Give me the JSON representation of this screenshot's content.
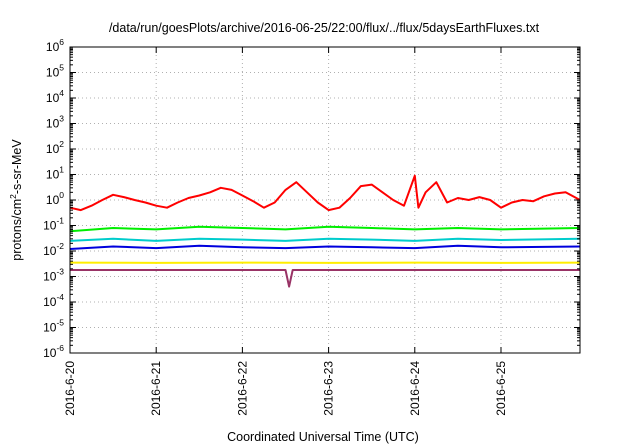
{
  "chart_data": {
    "type": "line",
    "title": "/data/run/goesPlots/archive/2016-06-25/22:00/flux/../flux/5daysEarthFluxes.txt",
    "xlabel": "Coordinated Universal Time (UTC)",
    "ylabel": {
      "prefix": "protons/cm",
      "sup": "2",
      "suffix": "-s-sr-MeV"
    },
    "y_scale": "log",
    "ylim": [
      1e-06,
      1000000.0
    ],
    "y_ticks": [
      {
        "base": "10",
        "exp": "6",
        "value": 1000000.0
      },
      {
        "base": "10",
        "exp": "5",
        "value": 100000.0
      },
      {
        "base": "10",
        "exp": "4",
        "value": 10000.0
      },
      {
        "base": "10",
        "exp": "3",
        "value": 1000.0
      },
      {
        "base": "10",
        "exp": "2",
        "value": 100.0
      },
      {
        "base": "10",
        "exp": "1",
        "value": 10.0
      },
      {
        "base": "10",
        "exp": "0",
        "value": 1
      },
      {
        "base": "10",
        "exp": "-1",
        "value": 0.1
      },
      {
        "base": "10",
        "exp": "-2",
        "value": 0.01
      },
      {
        "base": "10",
        "exp": "-3",
        "value": 0.001
      },
      {
        "base": "10",
        "exp": "-4",
        "value": 0.0001
      },
      {
        "base": "10",
        "exp": "-5",
        "value": 1e-05
      },
      {
        "base": "10",
        "exp": "-6",
        "value": 1e-06
      }
    ],
    "x_range_days": [
      "2016-06-20",
      "2016-06-25T22:00"
    ],
    "x_ticks": [
      "2016-6-20",
      "2016-6-21",
      "2016-6-22",
      "2016-6-23",
      "2016-6-24",
      "2016-6-25"
    ],
    "grid": true,
    "series": [
      {
        "color": "#ff0000",
        "points": [
          [
            "2016-06-20T00:00",
            0.5
          ],
          [
            "2016-06-20T03:00",
            0.4
          ],
          [
            "2016-06-20T06:00",
            0.6
          ],
          [
            "2016-06-20T09:00",
            1.0
          ],
          [
            "2016-06-20T12:00",
            1.6
          ],
          [
            "2016-06-20T15:00",
            1.3
          ],
          [
            "2016-06-20T18:00",
            1.0
          ],
          [
            "2016-06-20T21:00",
            0.8
          ],
          [
            "2016-06-21T00:00",
            0.6
          ],
          [
            "2016-06-21T03:00",
            0.5
          ],
          [
            "2016-06-21T06:00",
            0.8
          ],
          [
            "2016-06-21T09:00",
            1.2
          ],
          [
            "2016-06-21T12:00",
            1.5
          ],
          [
            "2016-06-21T15:00",
            2.0
          ],
          [
            "2016-06-21T18:00",
            3.0
          ],
          [
            "2016-06-21T21:00",
            2.5
          ],
          [
            "2016-06-22T00:00",
            1.5
          ],
          [
            "2016-06-22T03:00",
            0.9
          ],
          [
            "2016-06-22T06:00",
            0.5
          ],
          [
            "2016-06-22T09:00",
            0.8
          ],
          [
            "2016-06-22T12:00",
            2.5
          ],
          [
            "2016-06-22T15:00",
            5.0
          ],
          [
            "2016-06-22T18:00",
            2.0
          ],
          [
            "2016-06-22T21:00",
            0.8
          ],
          [
            "2016-06-23T00:00",
            0.4
          ],
          [
            "2016-06-23T03:00",
            0.5
          ],
          [
            "2016-06-23T06:00",
            1.2
          ],
          [
            "2016-06-23T09:00",
            3.5
          ],
          [
            "2016-06-23T12:00",
            4.0
          ],
          [
            "2016-06-23T15:00",
            2.0
          ],
          [
            "2016-06-23T18:00",
            1.0
          ],
          [
            "2016-06-23T21:00",
            0.6
          ],
          [
            "2016-06-24T00:00",
            9.0
          ],
          [
            "2016-06-24T01:00",
            0.5
          ],
          [
            "2016-06-24T03:00",
            2.0
          ],
          [
            "2016-06-24T06:00",
            5.0
          ],
          [
            "2016-06-24T09:00",
            0.8
          ],
          [
            "2016-06-24T12:00",
            1.2
          ],
          [
            "2016-06-24T15:00",
            1.0
          ],
          [
            "2016-06-24T18:00",
            1.3
          ],
          [
            "2016-06-24T21:00",
            1.0
          ],
          [
            "2016-06-25T00:00",
            0.5
          ],
          [
            "2016-06-25T03:00",
            0.8
          ],
          [
            "2016-06-25T06:00",
            1.0
          ],
          [
            "2016-06-25T09:00",
            0.9
          ],
          [
            "2016-06-25T12:00",
            1.4
          ],
          [
            "2016-06-25T15:00",
            1.8
          ],
          [
            "2016-06-25T18:00",
            2.0
          ],
          [
            "2016-06-25T22:00",
            1.0
          ]
        ]
      },
      {
        "color": "#00ee00",
        "points": [
          [
            "2016-06-20T00:00",
            0.06
          ],
          [
            "2016-06-20T12:00",
            0.08
          ],
          [
            "2016-06-21T00:00",
            0.07
          ],
          [
            "2016-06-21T12:00",
            0.09
          ],
          [
            "2016-06-22T00:00",
            0.08
          ],
          [
            "2016-06-22T12:00",
            0.07
          ],
          [
            "2016-06-23T00:00",
            0.09
          ],
          [
            "2016-06-23T12:00",
            0.08
          ],
          [
            "2016-06-24T00:00",
            0.07
          ],
          [
            "2016-06-24T12:00",
            0.08
          ],
          [
            "2016-06-25T00:00",
            0.07
          ],
          [
            "2016-06-25T22:00",
            0.08
          ]
        ]
      },
      {
        "color": "#00cccc",
        "points": [
          [
            "2016-06-20T00:00",
            0.025
          ],
          [
            "2016-06-20T12:00",
            0.03
          ],
          [
            "2016-06-21T00:00",
            0.025
          ],
          [
            "2016-06-21T12:00",
            0.03
          ],
          [
            "2016-06-22T00:00",
            0.028
          ],
          [
            "2016-06-22T12:00",
            0.025
          ],
          [
            "2016-06-23T00:00",
            0.03
          ],
          [
            "2016-06-23T12:00",
            0.028
          ],
          [
            "2016-06-24T00:00",
            0.025
          ],
          [
            "2016-06-24T12:00",
            0.03
          ],
          [
            "2016-06-25T00:00",
            0.027
          ],
          [
            "2016-06-25T22:00",
            0.03
          ]
        ]
      },
      {
        "color": "#0000dd",
        "points": [
          [
            "2016-06-20T00:00",
            0.012
          ],
          [
            "2016-06-20T12:00",
            0.015
          ],
          [
            "2016-06-21T00:00",
            0.013
          ],
          [
            "2016-06-21T12:00",
            0.016
          ],
          [
            "2016-06-22T00:00",
            0.014
          ],
          [
            "2016-06-22T12:00",
            0.013
          ],
          [
            "2016-06-23T00:00",
            0.015
          ],
          [
            "2016-06-23T12:00",
            0.014
          ],
          [
            "2016-06-24T00:00",
            0.013
          ],
          [
            "2016-06-24T12:00",
            0.016
          ],
          [
            "2016-06-25T00:00",
            0.014
          ],
          [
            "2016-06-25T22:00",
            0.015
          ]
        ]
      },
      {
        "color": "#ffee00",
        "points": [
          [
            "2016-06-20T00:00",
            0.0035
          ],
          [
            "2016-06-21T00:00",
            0.0034
          ],
          [
            "2016-06-22T00:00",
            0.0035
          ],
          [
            "2016-06-23T00:00",
            0.0034
          ],
          [
            "2016-06-24T00:00",
            0.0035
          ],
          [
            "2016-06-25T00:00",
            0.0034
          ],
          [
            "2016-06-25T22:00",
            0.0035
          ]
        ]
      },
      {
        "color": "#993366",
        "points": [
          [
            "2016-06-20T00:00",
            0.0018
          ],
          [
            "2016-06-21T00:00",
            0.0018
          ],
          [
            "2016-06-22T00:00",
            0.0018
          ],
          [
            "2016-06-22T12:00",
            0.0018
          ],
          [
            "2016-06-22T13:00",
            0.0004
          ],
          [
            "2016-06-22T14:00",
            0.0018
          ],
          [
            "2016-06-23T00:00",
            0.0018
          ],
          [
            "2016-06-24T00:00",
            0.0018
          ],
          [
            "2016-06-25T00:00",
            0.0018
          ],
          [
            "2016-06-25T22:00",
            0.0018
          ]
        ]
      }
    ]
  }
}
